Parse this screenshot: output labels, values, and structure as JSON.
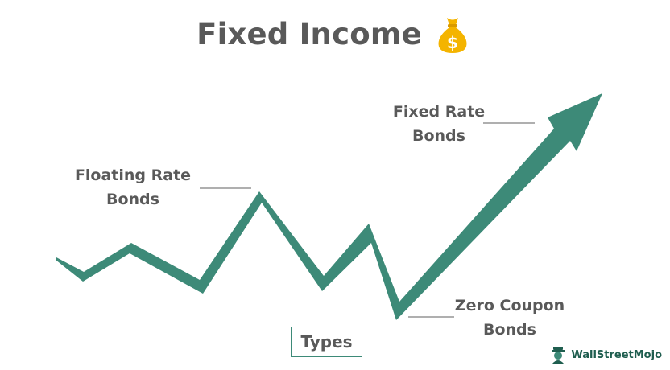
{
  "title": "Fixed Income",
  "title_icon": "money-bag-icon",
  "labels": {
    "fixed_rate": [
      "Fixed Rate",
      "Bonds"
    ],
    "floating_rate": [
      "Floating Rate",
      "Bonds"
    ],
    "zero_coupon": [
      "Zero Coupon",
      "Bonds"
    ]
  },
  "types_label": "Types",
  "brand": {
    "name": "WallStreetMojo",
    "icon": "wallstreetmojo-logo-icon"
  },
  "colors": {
    "arrow": "#3d8a78",
    "text": "#595959",
    "bag": "#f4b400",
    "brand": "#1f5e4f"
  }
}
